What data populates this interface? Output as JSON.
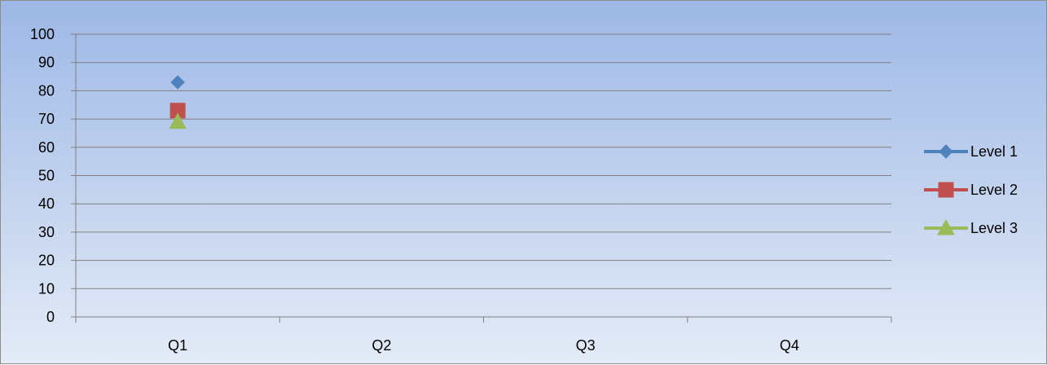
{
  "chart_data": {
    "type": "line",
    "categories": [
      "Q1",
      "Q2",
      "Q3",
      "Q4"
    ],
    "series": [
      {
        "name": "Level 1",
        "values": [
          83,
          null,
          null,
          null
        ],
        "color": "#4f81bd",
        "marker": "diamond"
      },
      {
        "name": "Level 2",
        "values": [
          73,
          null,
          null,
          null
        ],
        "color": "#c0504d",
        "marker": "square"
      },
      {
        "name": "Level 3",
        "values": [
          69,
          null,
          null,
          null
        ],
        "color": "#9bbb59",
        "marker": "triangle"
      }
    ],
    "title": "",
    "xlabel": "",
    "ylabel": "",
    "ylim": [
      0,
      100
    ],
    "yticks": [
      0,
      10,
      20,
      30,
      40,
      50,
      60,
      70,
      80,
      90,
      100
    ],
    "grid": true,
    "legend_position": "right"
  }
}
